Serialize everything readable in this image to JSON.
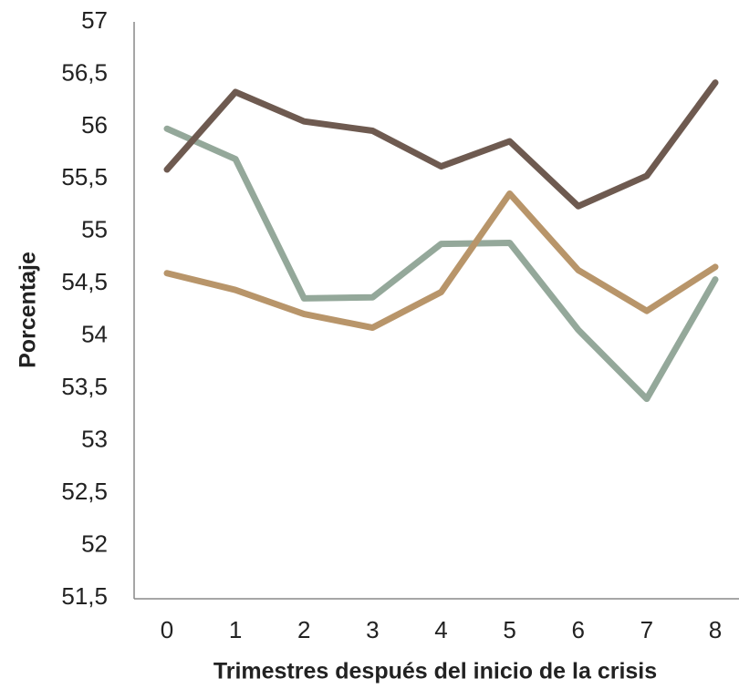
{
  "chart_data": {
    "type": "line",
    "x_label": "Trimestres después del inicio de la crisis",
    "y_label": "Porcentaje",
    "categories": [
      "0",
      "1",
      "2",
      "3",
      "4",
      "5",
      "6",
      "7",
      "8"
    ],
    "series": [
      {
        "color": "#94a89a",
        "values": [
          55.98,
          55.69,
          54.36,
          54.37,
          54.88,
          54.89,
          54.06,
          53.4,
          54.54
        ]
      },
      {
        "color": "#b8956a",
        "values": [
          54.6,
          54.44,
          54.21,
          54.08,
          54.42,
          55.36,
          54.63,
          54.24,
          54.66
        ]
      },
      {
        "color": "#6e5a50",
        "values": [
          55.59,
          56.33,
          56.05,
          55.96,
          55.62,
          55.86,
          55.24,
          55.53,
          56.42
        ]
      }
    ],
    "ylim": [
      51.5,
      57
    ],
    "yticks": [
      {
        "value": 51.5,
        "label": "51,5"
      },
      52,
      {
        "value": 52.5,
        "label": "52,5"
      },
      53,
      {
        "value": 53.5,
        "label": "53,5"
      },
      54,
      {
        "value": 54.5,
        "label": "54,5"
      },
      55,
      {
        "value": 55.5,
        "label": "55,5"
      },
      56,
      {
        "value": 56.5,
        "label": "56,5"
      },
      57
    ],
    "grid": false
  }
}
